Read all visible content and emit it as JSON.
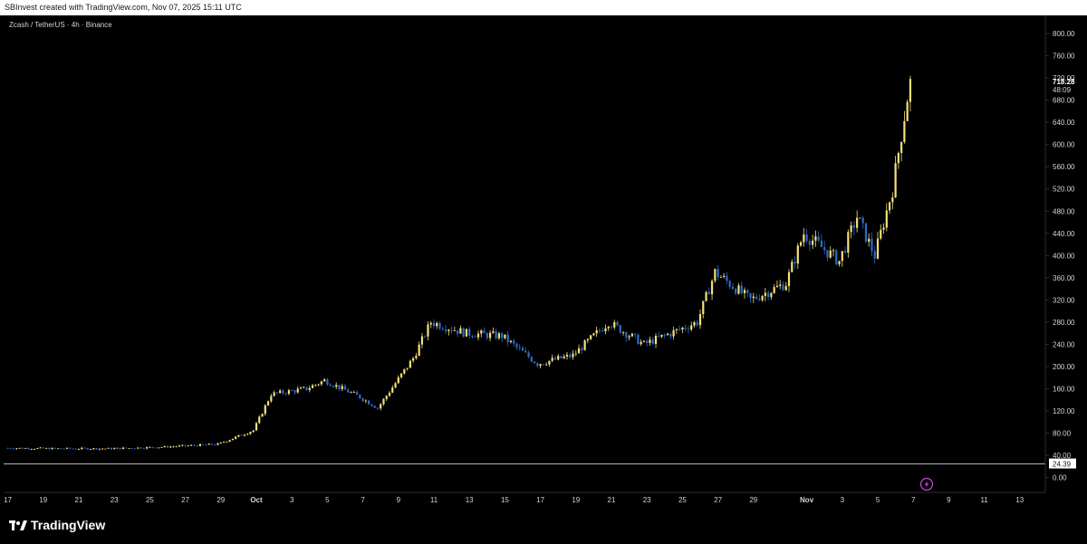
{
  "header": {
    "text": "SBInvest created with TradingView.com, Nov 07, 2025 15:11 UTC"
  },
  "symbol": {
    "text": "Zcash / TetherUS · 4h · Binance"
  },
  "footer": {
    "brand": "TradingView"
  },
  "colors": {
    "up": "#f4e07a",
    "down": "#2f6bc9",
    "background": "#000000",
    "text": "#d1d4dc",
    "horizontal_line": "#b2b5be"
  },
  "price_label": {
    "value": "718.28",
    "countdown": "48:09"
  },
  "horizontal_line": {
    "value": "24.39"
  },
  "icons": {
    "event": "lightning-icon"
  },
  "chart_data": {
    "type": "candlestick",
    "title": "",
    "xlabel": "",
    "ylabel": "",
    "ylim": [
      -30,
      840
    ],
    "y_ticks": [
      "0.00",
      "40.00",
      "80.00",
      "120.00",
      "160.00",
      "200.00",
      "240.00",
      "280.00",
      "320.00",
      "360.00",
      "400.00",
      "440.00",
      "480.00",
      "520.00",
      "560.00",
      "600.00",
      "640.00",
      "680.00",
      "720.00",
      "760.00",
      "800.00"
    ],
    "x_ticks": [
      "17",
      "19",
      "21",
      "23",
      "25",
      "27",
      "29",
      "Oct",
      "3",
      "5",
      "7",
      "9",
      "11",
      "13",
      "15",
      "17",
      "19",
      "21",
      "23",
      "25",
      "27",
      "29",
      "Nov",
      "3",
      "5",
      "7",
      "9",
      "11",
      "13"
    ],
    "grid": false,
    "key_prices": [
      {
        "date": "Sep 17",
        "close": 53
      },
      {
        "date": "Sep 20",
        "close": 52
      },
      {
        "date": "Sep 23",
        "close": 52
      },
      {
        "date": "Sep 26",
        "close": 55
      },
      {
        "date": "Sep 29",
        "close": 60
      },
      {
        "date": "Oct 1",
        "close": 85
      },
      {
        "date": "Oct 2",
        "close": 150
      },
      {
        "date": "Oct 4",
        "close": 160
      },
      {
        "date": "Oct 5",
        "close": 175
      },
      {
        "date": "Oct 7",
        "close": 145
      },
      {
        "date": "Oct 8",
        "close": 125
      },
      {
        "date": "Oct 10",
        "close": 215
      },
      {
        "date": "Oct 11",
        "close": 280
      },
      {
        "date": "Oct 13",
        "close": 260
      },
      {
        "date": "Oct 15",
        "close": 255
      },
      {
        "date": "Oct 17",
        "close": 205
      },
      {
        "date": "Oct 19",
        "close": 220
      },
      {
        "date": "Oct 21",
        "close": 280
      },
      {
        "date": "Oct 23",
        "close": 240
      },
      {
        "date": "Oct 26",
        "close": 280
      },
      {
        "date": "Oct 27",
        "close": 370
      },
      {
        "date": "Oct 29",
        "close": 320
      },
      {
        "date": "Oct 31",
        "close": 350
      },
      {
        "date": "Nov 1",
        "close": 440
      },
      {
        "date": "Nov 3",
        "close": 390
      },
      {
        "date": "Nov 4",
        "close": 470
      },
      {
        "date": "Nov 5",
        "close": 400
      },
      {
        "date": "Nov 6",
        "close": 520
      },
      {
        "date": "Nov 7",
        "close": 718.28
      }
    ]
  }
}
